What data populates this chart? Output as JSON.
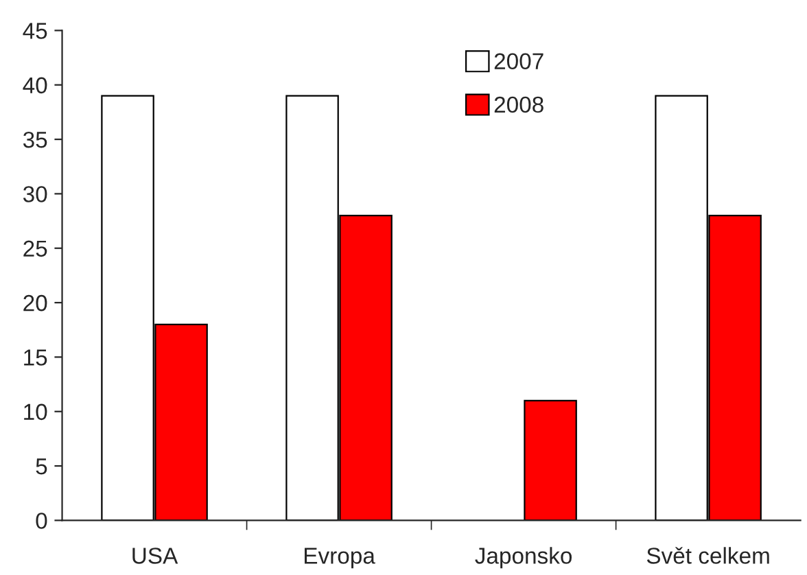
{
  "chart_data": {
    "type": "bar",
    "categories": [
      "USA",
      "Evropa",
      "Japonsko",
      "Svět celkem"
    ],
    "series": [
      {
        "name": "2007",
        "color": "#ffffff",
        "values": [
          39,
          39,
          null,
          39
        ]
      },
      {
        "name": "2008",
        "color": "#ff0000",
        "values": [
          18,
          28,
          11,
          28
        ]
      }
    ],
    "ylim": [
      0,
      45
    ],
    "yticks": [
      0,
      5,
      10,
      15,
      20,
      25,
      30,
      35,
      40,
      45
    ],
    "grid": false,
    "legend": "top"
  }
}
